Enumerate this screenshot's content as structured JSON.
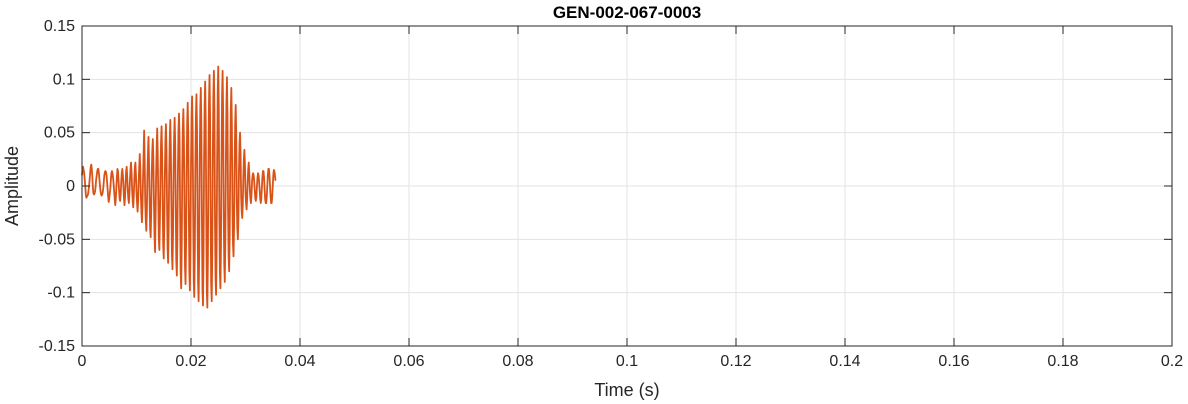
{
  "chart_data": {
    "type": "line",
    "title": "GEN-002-067-0003",
    "xlabel": "Time (s)",
    "ylabel": "Amplitude",
    "xlim": [
      0,
      0.2
    ],
    "ylim": [
      -0.15,
      0.15
    ],
    "grid": true,
    "x_ticks": [
      0,
      0.02,
      0.04,
      0.06,
      0.08,
      0.1,
      0.12,
      0.14,
      0.16,
      0.18,
      0.2
    ],
    "x_tick_labels": [
      "0",
      "0.02",
      "0.04",
      "0.06",
      "0.08",
      "0.1",
      "0.12",
      "0.14",
      "0.16",
      "0.18",
      "0.2"
    ],
    "y_ticks": [
      -0.15,
      -0.1,
      -0.05,
      0,
      0.05,
      0.1,
      0.15
    ],
    "y_tick_labels": [
      "-0.15",
      "-0.1",
      "-0.05",
      "0",
      "0.05",
      "0.1",
      "0.15"
    ],
    "series": [
      {
        "color": "#d95319",
        "sample_rate_hz": 10000,
        "x_start": 0,
        "y": [
          0.01,
          0.016,
          0.018,
          0.015,
          0.012,
          0.006,
          0.0,
          -0.008,
          -0.011,
          -0.01,
          -0.009,
          -0.008,
          -0.004,
          0.0,
          0.006,
          0.012,
          0.018,
          0.02,
          0.016,
          0.008,
          -0.002,
          -0.007,
          -0.008,
          -0.007,
          -0.005,
          0.0,
          0.006,
          0.01,
          0.014,
          0.016,
          0.016,
          0.012,
          0.006,
          0.0,
          -0.005,
          -0.008,
          -0.009,
          -0.008,
          -0.006,
          -0.002,
          0.004,
          0.01,
          0.013,
          0.014,
          0.013,
          0.01,
          0.004,
          -0.003,
          -0.01,
          -0.015,
          -0.012,
          -0.007,
          -0.002,
          0.006,
          0.012,
          0.014,
          0.012,
          0.008,
          0.002,
          -0.005,
          -0.012,
          -0.018,
          -0.012,
          -0.002,
          0.008,
          0.016,
          0.014,
          0.006,
          -0.004,
          -0.012,
          -0.014,
          -0.008,
          0.004,
          0.012,
          0.016,
          0.01,
          0.0,
          -0.012,
          -0.018,
          -0.01,
          0.004,
          0.014,
          0.018,
          0.008,
          -0.004,
          -0.012,
          -0.016,
          -0.008,
          0.006,
          0.016,
          0.022,
          0.012,
          -0.004,
          -0.014,
          -0.02,
          -0.01,
          0.006,
          0.018,
          0.022,
          0.01,
          -0.006,
          -0.016,
          -0.024,
          -0.014,
          0.004,
          0.018,
          0.03,
          0.016,
          -0.008,
          -0.024,
          -0.034,
          -0.018,
          0.008,
          0.03,
          0.052,
          0.024,
          -0.014,
          -0.032,
          -0.042,
          -0.024,
          0.01,
          0.03,
          0.046,
          0.022,
          -0.012,
          -0.04,
          -0.048,
          -0.024,
          0.012,
          0.034,
          0.044,
          0.024,
          -0.014,
          -0.046,
          -0.062,
          -0.03,
          0.01,
          0.036,
          0.054,
          0.03,
          -0.014,
          -0.05,
          -0.06,
          -0.03,
          0.012,
          0.04,
          0.056,
          0.03,
          -0.016,
          -0.056,
          -0.068,
          -0.036,
          0.01,
          0.042,
          0.058,
          0.034,
          -0.016,
          -0.058,
          -0.072,
          -0.04,
          0.012,
          0.044,
          0.062,
          0.036,
          -0.018,
          -0.064,
          -0.078,
          -0.046,
          0.014,
          0.046,
          0.064,
          0.04,
          -0.02,
          -0.07,
          -0.084,
          -0.05,
          0.014,
          0.052,
          0.068,
          0.044,
          -0.022,
          -0.08,
          -0.096,
          -0.056,
          0.016,
          0.056,
          0.072,
          0.044,
          -0.02,
          -0.076,
          -0.092,
          -0.054,
          0.018,
          0.06,
          0.078,
          0.048,
          -0.022,
          -0.082,
          -0.098,
          -0.058,
          0.02,
          0.064,
          0.084,
          0.052,
          -0.024,
          -0.088,
          -0.104,
          -0.062,
          0.02,
          0.066,
          0.086,
          0.054,
          -0.024,
          -0.09,
          -0.108,
          -0.064,
          0.022,
          0.072,
          0.092,
          0.058,
          -0.026,
          -0.096,
          -0.112,
          -0.066,
          0.024,
          0.076,
          0.098,
          0.062,
          -0.026,
          -0.098,
          -0.114,
          -0.068,
          0.024,
          0.08,
          0.104,
          0.066,
          -0.028,
          -0.092,
          -0.108,
          -0.064,
          0.026,
          0.084,
          0.108,
          0.07,
          -0.028,
          -0.086,
          -0.102,
          -0.06,
          0.026,
          0.088,
          0.112,
          0.072,
          -0.026,
          -0.082,
          -0.096,
          -0.056,
          0.024,
          0.084,
          0.108,
          0.068,
          -0.024,
          -0.074,
          -0.09,
          -0.052,
          0.022,
          0.078,
          0.102,
          0.064,
          -0.02,
          -0.066,
          -0.08,
          -0.046,
          0.02,
          0.07,
          0.092,
          0.058,
          -0.018,
          -0.054,
          -0.066,
          -0.04,
          0.018,
          0.058,
          0.076,
          0.048,
          -0.014,
          -0.04,
          -0.05,
          -0.03,
          0.014,
          0.04,
          0.05,
          0.03,
          -0.01,
          -0.024,
          -0.03,
          -0.018,
          0.008,
          0.026,
          0.034,
          0.02,
          -0.006,
          -0.016,
          -0.022,
          -0.012,
          0.004,
          0.016,
          0.022,
          0.012,
          -0.004,
          -0.012,
          -0.016,
          -0.008,
          0.004,
          0.01,
          0.012,
          0.01,
          0.004,
          -0.004,
          -0.012,
          -0.014,
          -0.01,
          0.0,
          0.008,
          0.012,
          0.01,
          0.004,
          -0.004,
          -0.012,
          -0.016,
          -0.012,
          -0.002,
          0.008,
          0.014,
          0.014,
          0.008,
          -0.002,
          -0.012,
          -0.016,
          -0.016,
          -0.01,
          0.0,
          0.01,
          0.016,
          0.016,
          0.01,
          0.0,
          -0.01,
          -0.016,
          -0.016,
          -0.01,
          0.0,
          0.01,
          0.015,
          0.014,
          0.01,
          0.005
        ]
      }
    ]
  }
}
